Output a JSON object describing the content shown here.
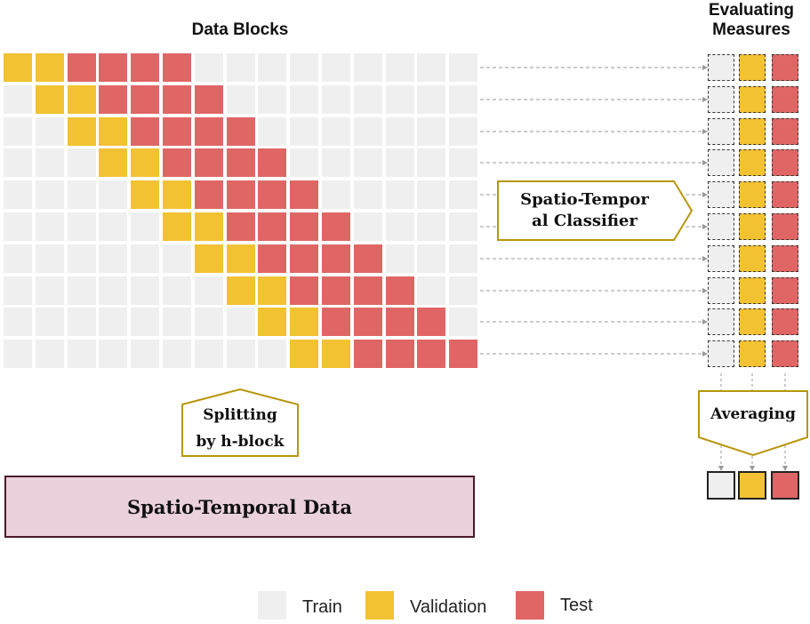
{
  "titles": {
    "data_blocks": "Data Blocks",
    "evaluating_line1": "Evaluating",
    "evaluating_line2": "Measures"
  },
  "classifier": {
    "line1": "Spatio-Tempor",
    "line2": "al Classifier"
  },
  "splitting": {
    "line1": "Splitting",
    "line2": "by h-block"
  },
  "averaging": {
    "label": "Averaging"
  },
  "data_box": {
    "label": "Spatio-Temporal Data"
  },
  "legend": [
    {
      "label": "Train",
      "role": "train"
    },
    {
      "label": "Validation",
      "role": "validation"
    },
    {
      "label": "Test",
      "role": "test"
    }
  ],
  "grid": {
    "rows": 10,
    "cols": 15,
    "validation_blocks_per_row": 2,
    "test_blocks_per_row": 4,
    "shift_per_row": 1
  },
  "colors": {
    "train": "#efefef",
    "validation": "#f2c232",
    "test": "#e06666",
    "arrow_box_border": "#b8960c",
    "data_box_fill": "#ead1dc",
    "data_box_border": "#4a1a2c"
  }
}
